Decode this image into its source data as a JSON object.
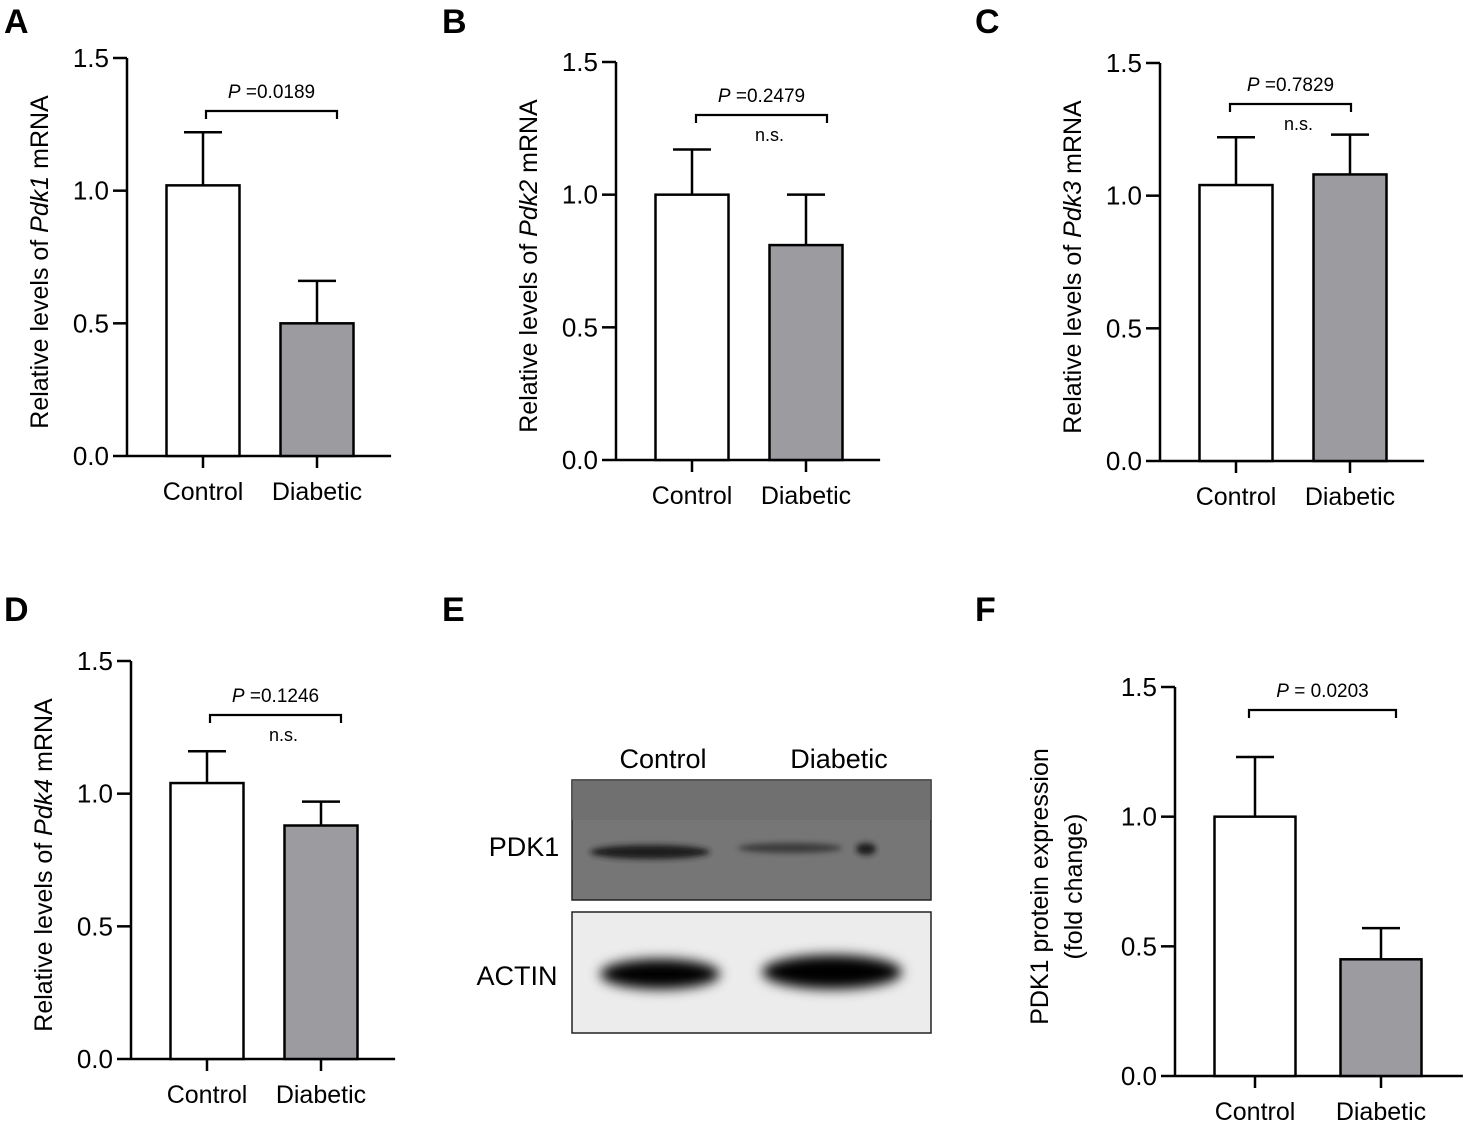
{
  "colors": {
    "control": "#ffffff",
    "diabetic": "#9b9ba0",
    "stroke": "#000000"
  },
  "chart_data": [
    {
      "panel": "A",
      "type": "bar",
      "categories": [
        "Control",
        "Diabetic"
      ],
      "values": [
        1.02,
        0.5
      ],
      "errors": [
        0.2,
        0.16
      ],
      "ylabel_pre": "Relative levels of ",
      "ylabel_gene": "Pdk1",
      "ylabel_post": " mRNA",
      "ylim": [
        0,
        1.5
      ],
      "yticks": [
        "0.0",
        "0.5",
        "1.0",
        "1.5"
      ],
      "p_italic": "P",
      "p_value": " =0.0189",
      "ns": ""
    },
    {
      "panel": "B",
      "type": "bar",
      "categories": [
        "Control",
        "Diabetic"
      ],
      "values": [
        1.0,
        0.81
      ],
      "errors": [
        0.17,
        0.19
      ],
      "ylabel_pre": "Relative levels of ",
      "ylabel_gene": "Pdk2",
      "ylabel_post": " mRNA",
      "ylim": [
        0,
        1.5
      ],
      "yticks": [
        "0.0",
        "0.5",
        "1.0",
        "1.5"
      ],
      "p_italic": "P",
      "p_value": " =0.2479",
      "ns": "n.s."
    },
    {
      "panel": "C",
      "type": "bar",
      "categories": [
        "Control",
        "Diabetic"
      ],
      "values": [
        1.04,
        1.08
      ],
      "errors": [
        0.18,
        0.15
      ],
      "ylabel_pre": "Relative levels of ",
      "ylabel_gene": "Pdk3",
      "ylabel_post": " mRNA",
      "ylim": [
        0,
        1.5
      ],
      "yticks": [
        "0.0",
        "0.5",
        "1.0",
        "1.5"
      ],
      "p_italic": "P",
      "p_value": " =0.7829",
      "ns": "n.s."
    },
    {
      "panel": "D",
      "type": "bar",
      "categories": [
        "Control",
        "Diabetic"
      ],
      "values": [
        1.04,
        0.88
      ],
      "errors": [
        0.12,
        0.09
      ],
      "ylabel_pre": "Relative levels of ",
      "ylabel_gene": "Pdk4",
      "ylabel_post": " mRNA",
      "ylim": [
        0,
        1.5
      ],
      "yticks": [
        "0.0",
        "0.5",
        "1.0",
        "1.5"
      ],
      "p_italic": "P",
      "p_value": " =0.1246",
      "ns": "n.s."
    },
    {
      "panel": "F",
      "type": "bar",
      "categories": [
        "Control",
        "Diabetic"
      ],
      "values": [
        1.0,
        0.45
      ],
      "errors": [
        0.23,
        0.12
      ],
      "ylabel_line1": "PDK1 protein expression",
      "ylabel_line2": "(fold change)",
      "ylim": [
        0,
        1.5
      ],
      "yticks": [
        "0.0",
        "0.5",
        "1.0",
        "1.5"
      ],
      "p_italic": "P",
      "p_value": " = 0.0203",
      "ns": ""
    }
  ],
  "blot": {
    "panel": "E",
    "lanes": [
      "Control",
      "Diabetic"
    ],
    "rows": [
      "PDK1",
      "ACTIN"
    ]
  }
}
